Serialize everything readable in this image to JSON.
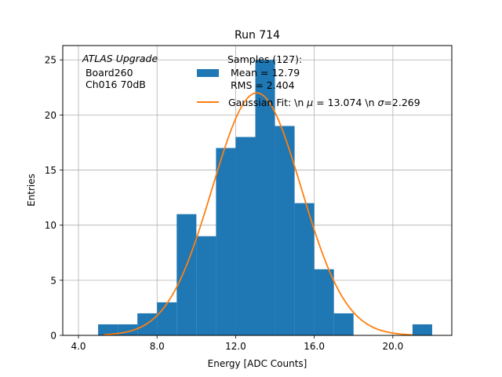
{
  "chart_data": {
    "type": "bar",
    "title": "Run 714",
    "xlabel": "Energy [ADC Counts]",
    "ylabel": "Entries",
    "xlim": [
      3.2,
      23.0
    ],
    "ylim": [
      0,
      26.3
    ],
    "grid": true,
    "x_ticks": [
      4.0,
      8.0,
      12.0,
      16.0,
      20.0
    ],
    "x_tick_labels": [
      "4.0",
      "8.0",
      "12.0",
      "16.0",
      "20.0"
    ],
    "y_ticks": [
      0,
      5,
      10,
      15,
      20,
      25
    ],
    "y_tick_labels": [
      "0",
      "5",
      "10",
      "15",
      "20",
      "25"
    ],
    "bin_width": 1.0,
    "bin_edges_start": [
      5,
      6,
      7,
      8,
      9,
      10,
      11,
      12,
      13,
      14,
      15,
      16,
      17,
      18,
      19,
      20,
      21
    ],
    "bin_counts": [
      1,
      1,
      2,
      3,
      11,
      9,
      17,
      18,
      25,
      19,
      12,
      6,
      2,
      0,
      0,
      0,
      1
    ],
    "histogram_color": "#1f77b4",
    "fit": {
      "mu": 13.074,
      "sigma": 2.269,
      "amplitude": 22.0,
      "x_start": 5.3,
      "x_end": 21.0,
      "color": "#ff7f0e"
    },
    "annotation_lines": [
      "ATLAS Upgrade",
      " Board260",
      " Ch016 70dB"
    ],
    "legend": {
      "placement": "top-right",
      "histogram_entry_lines": [
        "Samples (127):",
        " Mean = 12.79",
        " RMS = 2.404"
      ],
      "fit_entry_parts": [
        "Gaussian Fit: \\n ",
        "μ",
        " = 13.074 \\n ",
        "σ",
        "=2.269"
      ]
    }
  }
}
